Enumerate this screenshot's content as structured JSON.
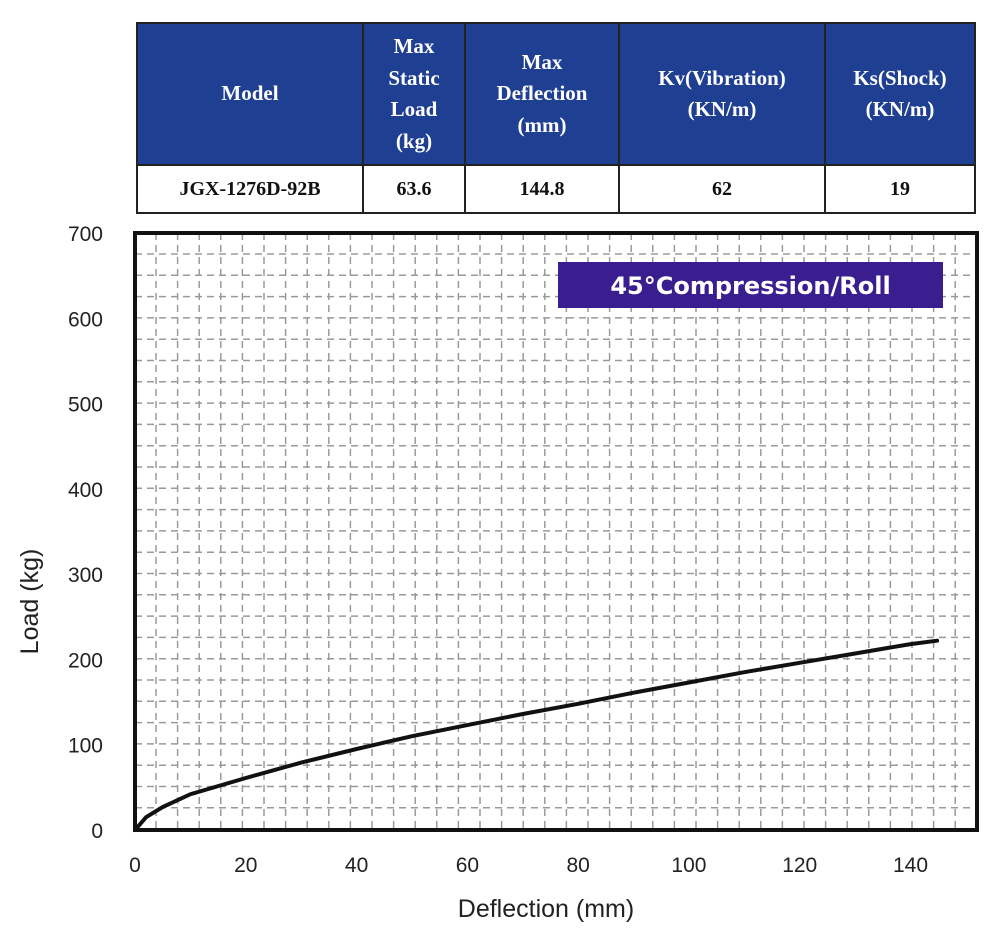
{
  "spec_table": {
    "headers": [
      [
        "Model"
      ],
      [
        "Max",
        "Static",
        "Load",
        "(kg)"
      ],
      [
        "Max",
        "Deflection",
        "(mm)"
      ],
      [
        "Kv(Vibration)",
        "(KN/m)"
      ],
      [
        "Ks(Shock)",
        "(KN/m)"
      ]
    ],
    "row": [
      "JGX-1276D-92B",
      "63.6",
      "144.8",
      "62",
      "19"
    ]
  },
  "colors": {
    "header_bg": "#1f3f93",
    "badge_bg": "#3a1d8f",
    "curve": "#111111",
    "grid": "#9a9a9a"
  },
  "chart_data": {
    "type": "line",
    "title": "",
    "badge": "45°Compression/Roll",
    "xlabel": "Deflection (mm)",
    "ylabel": "Load (kg)",
    "xlim": [
      0,
      152
    ],
    "ylim": [
      0,
      700
    ],
    "x_ticks": [
      0,
      20,
      40,
      60,
      80,
      100,
      120,
      140
    ],
    "y_ticks": [
      0,
      100,
      200,
      300,
      400,
      500,
      600,
      700
    ],
    "grid": true,
    "series": [
      {
        "x": [
          0,
          2,
          5,
          10,
          20,
          30,
          40,
          50,
          60,
          70,
          80,
          90,
          100,
          110,
          120,
          130,
          140,
          144.8
        ],
        "y": [
          0,
          15,
          27,
          42,
          61,
          79,
          95,
          110,
          123,
          136,
          148,
          161,
          173,
          185,
          196,
          207,
          218,
          222
        ]
      }
    ]
  }
}
